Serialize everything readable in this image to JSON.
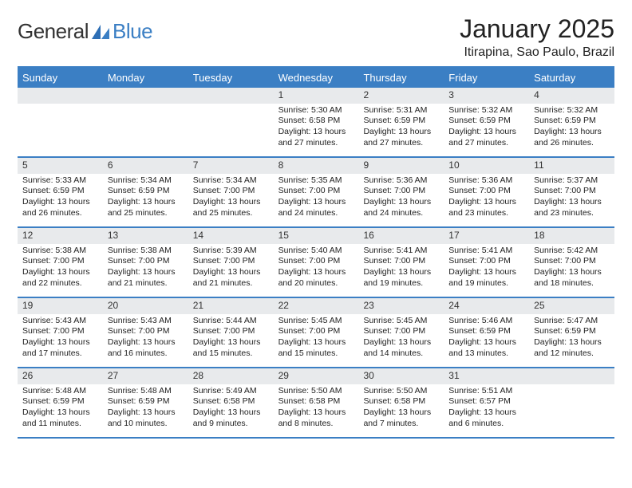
{
  "brand": {
    "part1": "General",
    "part2": "Blue"
  },
  "title": "January 2025",
  "location": "Itirapina, Sao Paulo, Brazil",
  "colors": {
    "accent": "#3b7fc4",
    "daybar": "#e8eaec",
    "text": "#222222",
    "background": "#ffffff",
    "dow_text": "#ffffff"
  },
  "typography": {
    "title_fontsize": 32,
    "location_fontsize": 16,
    "dow_fontsize": 13,
    "body_fontsize": 10.5
  },
  "days_of_week": [
    "Sunday",
    "Monday",
    "Tuesday",
    "Wednesday",
    "Thursday",
    "Friday",
    "Saturday"
  ],
  "weeks": [
    [
      null,
      null,
      null,
      {
        "n": "1",
        "sr": "Sunrise: 5:30 AM",
        "ss": "Sunset: 6:58 PM",
        "dl1": "Daylight: 13 hours",
        "dl2": "and 27 minutes."
      },
      {
        "n": "2",
        "sr": "Sunrise: 5:31 AM",
        "ss": "Sunset: 6:59 PM",
        "dl1": "Daylight: 13 hours",
        "dl2": "and 27 minutes."
      },
      {
        "n": "3",
        "sr": "Sunrise: 5:32 AM",
        "ss": "Sunset: 6:59 PM",
        "dl1": "Daylight: 13 hours",
        "dl2": "and 27 minutes."
      },
      {
        "n": "4",
        "sr": "Sunrise: 5:32 AM",
        "ss": "Sunset: 6:59 PM",
        "dl1": "Daylight: 13 hours",
        "dl2": "and 26 minutes."
      }
    ],
    [
      {
        "n": "5",
        "sr": "Sunrise: 5:33 AM",
        "ss": "Sunset: 6:59 PM",
        "dl1": "Daylight: 13 hours",
        "dl2": "and 26 minutes."
      },
      {
        "n": "6",
        "sr": "Sunrise: 5:34 AM",
        "ss": "Sunset: 6:59 PM",
        "dl1": "Daylight: 13 hours",
        "dl2": "and 25 minutes."
      },
      {
        "n": "7",
        "sr": "Sunrise: 5:34 AM",
        "ss": "Sunset: 7:00 PM",
        "dl1": "Daylight: 13 hours",
        "dl2": "and 25 minutes."
      },
      {
        "n": "8",
        "sr": "Sunrise: 5:35 AM",
        "ss": "Sunset: 7:00 PM",
        "dl1": "Daylight: 13 hours",
        "dl2": "and 24 minutes."
      },
      {
        "n": "9",
        "sr": "Sunrise: 5:36 AM",
        "ss": "Sunset: 7:00 PM",
        "dl1": "Daylight: 13 hours",
        "dl2": "and 24 minutes."
      },
      {
        "n": "10",
        "sr": "Sunrise: 5:36 AM",
        "ss": "Sunset: 7:00 PM",
        "dl1": "Daylight: 13 hours",
        "dl2": "and 23 minutes."
      },
      {
        "n": "11",
        "sr": "Sunrise: 5:37 AM",
        "ss": "Sunset: 7:00 PM",
        "dl1": "Daylight: 13 hours",
        "dl2": "and 23 minutes."
      }
    ],
    [
      {
        "n": "12",
        "sr": "Sunrise: 5:38 AM",
        "ss": "Sunset: 7:00 PM",
        "dl1": "Daylight: 13 hours",
        "dl2": "and 22 minutes."
      },
      {
        "n": "13",
        "sr": "Sunrise: 5:38 AM",
        "ss": "Sunset: 7:00 PM",
        "dl1": "Daylight: 13 hours",
        "dl2": "and 21 minutes."
      },
      {
        "n": "14",
        "sr": "Sunrise: 5:39 AM",
        "ss": "Sunset: 7:00 PM",
        "dl1": "Daylight: 13 hours",
        "dl2": "and 21 minutes."
      },
      {
        "n": "15",
        "sr": "Sunrise: 5:40 AM",
        "ss": "Sunset: 7:00 PM",
        "dl1": "Daylight: 13 hours",
        "dl2": "and 20 minutes."
      },
      {
        "n": "16",
        "sr": "Sunrise: 5:41 AM",
        "ss": "Sunset: 7:00 PM",
        "dl1": "Daylight: 13 hours",
        "dl2": "and 19 minutes."
      },
      {
        "n": "17",
        "sr": "Sunrise: 5:41 AM",
        "ss": "Sunset: 7:00 PM",
        "dl1": "Daylight: 13 hours",
        "dl2": "and 19 minutes."
      },
      {
        "n": "18",
        "sr": "Sunrise: 5:42 AM",
        "ss": "Sunset: 7:00 PM",
        "dl1": "Daylight: 13 hours",
        "dl2": "and 18 minutes."
      }
    ],
    [
      {
        "n": "19",
        "sr": "Sunrise: 5:43 AM",
        "ss": "Sunset: 7:00 PM",
        "dl1": "Daylight: 13 hours",
        "dl2": "and 17 minutes."
      },
      {
        "n": "20",
        "sr": "Sunrise: 5:43 AM",
        "ss": "Sunset: 7:00 PM",
        "dl1": "Daylight: 13 hours",
        "dl2": "and 16 minutes."
      },
      {
        "n": "21",
        "sr": "Sunrise: 5:44 AM",
        "ss": "Sunset: 7:00 PM",
        "dl1": "Daylight: 13 hours",
        "dl2": "and 15 minutes."
      },
      {
        "n": "22",
        "sr": "Sunrise: 5:45 AM",
        "ss": "Sunset: 7:00 PM",
        "dl1": "Daylight: 13 hours",
        "dl2": "and 15 minutes."
      },
      {
        "n": "23",
        "sr": "Sunrise: 5:45 AM",
        "ss": "Sunset: 7:00 PM",
        "dl1": "Daylight: 13 hours",
        "dl2": "and 14 minutes."
      },
      {
        "n": "24",
        "sr": "Sunrise: 5:46 AM",
        "ss": "Sunset: 6:59 PM",
        "dl1": "Daylight: 13 hours",
        "dl2": "and 13 minutes."
      },
      {
        "n": "25",
        "sr": "Sunrise: 5:47 AM",
        "ss": "Sunset: 6:59 PM",
        "dl1": "Daylight: 13 hours",
        "dl2": "and 12 minutes."
      }
    ],
    [
      {
        "n": "26",
        "sr": "Sunrise: 5:48 AM",
        "ss": "Sunset: 6:59 PM",
        "dl1": "Daylight: 13 hours",
        "dl2": "and 11 minutes."
      },
      {
        "n": "27",
        "sr": "Sunrise: 5:48 AM",
        "ss": "Sunset: 6:59 PM",
        "dl1": "Daylight: 13 hours",
        "dl2": "and 10 minutes."
      },
      {
        "n": "28",
        "sr": "Sunrise: 5:49 AM",
        "ss": "Sunset: 6:58 PM",
        "dl1": "Daylight: 13 hours",
        "dl2": "and 9 minutes."
      },
      {
        "n": "29",
        "sr": "Sunrise: 5:50 AM",
        "ss": "Sunset: 6:58 PM",
        "dl1": "Daylight: 13 hours",
        "dl2": "and 8 minutes."
      },
      {
        "n": "30",
        "sr": "Sunrise: 5:50 AM",
        "ss": "Sunset: 6:58 PM",
        "dl1": "Daylight: 13 hours",
        "dl2": "and 7 minutes."
      },
      {
        "n": "31",
        "sr": "Sunrise: 5:51 AM",
        "ss": "Sunset: 6:57 PM",
        "dl1": "Daylight: 13 hours",
        "dl2": "and 6 minutes."
      },
      null
    ]
  ]
}
